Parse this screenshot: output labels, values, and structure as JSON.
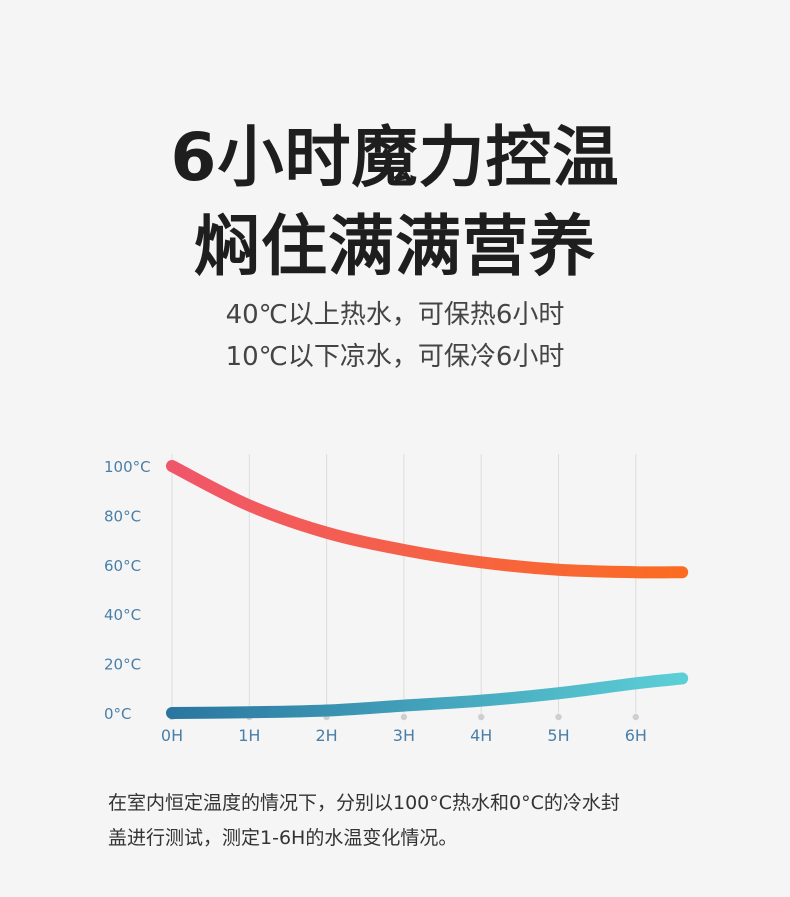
{
  "headline": {
    "line1": "6小时魔力控温",
    "line2": "焖住满满营养"
  },
  "subtitle": {
    "line1": "40℃以上热水，可保热6小时",
    "line2": "10℃以下凉水，可保冷6小时"
  },
  "footnote": {
    "line1": "在室内恒定温度的情况下，分别以100°C热水和0°C的冷水封",
    "line2": "盖进行测试，测定1-6H的水温变化情况。"
  },
  "colors": {
    "hot_start": "#f0566a",
    "hot_end": "#fb6c22",
    "cold_start": "#2a76a0",
    "cold_end": "#5ccfd6",
    "axis_text": "#4a7fa8",
    "grid": "#dddddd"
  },
  "chart_data": {
    "type": "line",
    "x": [
      0,
      1,
      2,
      3,
      4,
      5,
      6,
      6.6
    ],
    "x_tick_labels": [
      "0H",
      "1H",
      "2H",
      "3H",
      "4H",
      "5H",
      "6H"
    ],
    "y_tick_values": [
      0,
      20,
      40,
      60,
      80,
      100
    ],
    "y_tick_labels": [
      "0°C",
      "20°C",
      "40°C",
      "60°C",
      "80°C",
      "100°C"
    ],
    "ylim": [
      0,
      100
    ],
    "grid": "vertical",
    "legend": "none",
    "series": [
      {
        "key": "hot",
        "values": [
          100,
          84,
          73,
          66,
          61,
          58,
          57,
          57
        ]
      },
      {
        "key": "cold",
        "values": [
          0,
          0.3,
          1,
          3,
          5,
          8,
          12,
          14
        ]
      }
    ]
  }
}
